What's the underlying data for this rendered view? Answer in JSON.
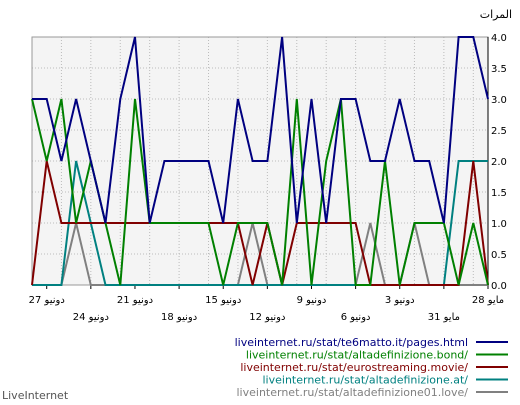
{
  "chart_data": {
    "type": "line",
    "units_label": "المرات",
    "brand": "LiveInternet",
    "ylim": [
      0,
      4
    ],
    "y_ticks": [
      "0.0",
      "0.5",
      "1.0",
      "1.5",
      "2.0",
      "2.5",
      "3.0",
      "3.5",
      "4.0"
    ],
    "x_ticks_top": [
      "27 دونيو",
      "21 دونيو",
      "15 دونيو",
      "9 دونيو",
      "3 دونيو",
      "28 مايو"
    ],
    "x_ticks_bottom": [
      "24 دونيو",
      "18 دونيو",
      "12 دونيو",
      "6 دونيو",
      "31 مايو"
    ],
    "grid": true,
    "legend_position": "bottom-right",
    "series": [
      {
        "name": "liveinternet.ru/stat/te6matto.it/pages.html",
        "color": "#000080",
        "values": [
          3,
          3,
          2,
          3,
          2,
          1,
          3,
          4,
          1,
          2,
          2,
          2,
          2,
          1,
          3,
          2,
          2,
          4,
          1,
          3,
          1,
          3,
          3,
          2,
          2,
          3,
          2,
          2,
          1,
          4,
          4,
          3
        ]
      },
      {
        "name": "liveinternet.ru/stat/altadefinizione.bond/",
        "color": "#008000",
        "values": [
          3,
          2,
          3,
          1,
          2,
          1,
          0,
          3,
          1,
          1,
          1,
          1,
          1,
          0,
          1,
          1,
          1,
          0,
          3,
          0,
          2,
          3,
          0,
          0,
          2,
          0,
          1,
          1,
          1,
          0,
          1,
          0
        ]
      },
      {
        "name": "liveinternet.ru/stat/eurostreaming.movie/",
        "color": "#800000",
        "values": [
          0,
          2,
          1,
          1,
          1,
          1,
          1,
          1,
          1,
          1,
          1,
          1,
          1,
          1,
          1,
          0,
          1,
          0,
          1,
          1,
          1,
          1,
          1,
          0,
          0,
          0,
          0,
          0,
          0,
          0,
          2,
          0
        ]
      },
      {
        "name": "liveinternet.ru/stat/altadefinizione.at/",
        "color": "#008080",
        "values": [
          0,
          0,
          0,
          2,
          1,
          0,
          0,
          0,
          0,
          0,
          0,
          0,
          0,
          0,
          0,
          0,
          0,
          0,
          0,
          0,
          0,
          0,
          0,
          0,
          0,
          0,
          0,
          0,
          0,
          2,
          2,
          2
        ]
      },
      {
        "name": "liveinternet.ru/stat/altadefinizione01.love/",
        "color": "#808080",
        "values": [
          0,
          0,
          0,
          1,
          0,
          0,
          0,
          0,
          0,
          0,
          0,
          0,
          0,
          0,
          0,
          1,
          0,
          0,
          0,
          0,
          0,
          0,
          0,
          1,
          0,
          0,
          1,
          0,
          0,
          0,
          0,
          0
        ]
      }
    ]
  }
}
